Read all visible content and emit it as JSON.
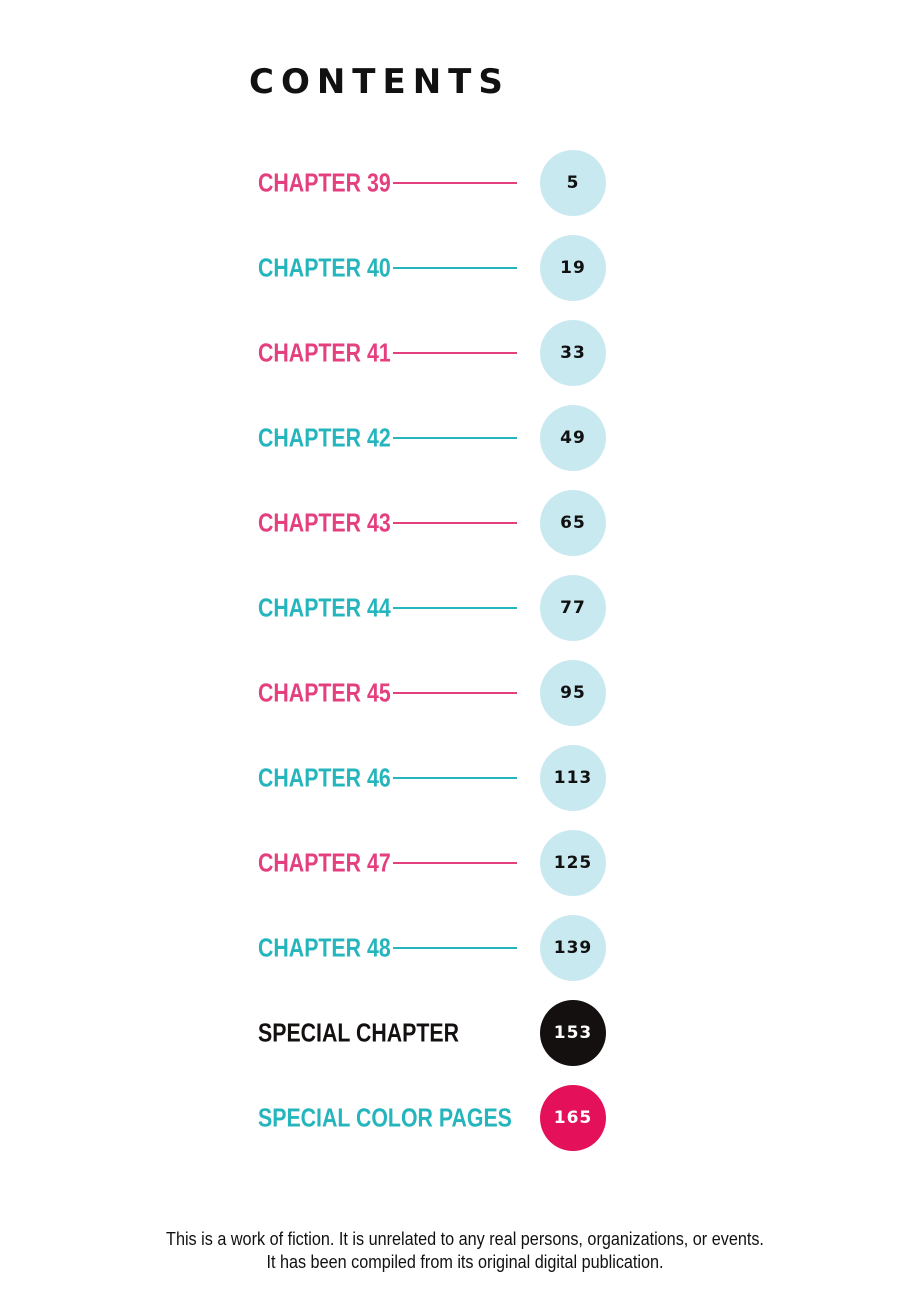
{
  "title": "CONTENTS",
  "colors": {
    "pink": "#e43f7e",
    "teal": "#25b5bd",
    "circle": "#c9e9f0",
    "black": "#141010",
    "red": "#e4105a"
  },
  "entries": [
    {
      "label": "CHAPTER 39",
      "page": "5",
      "style": "pink"
    },
    {
      "label": "CHAPTER 40",
      "page": "19",
      "style": "teal"
    },
    {
      "label": "CHAPTER 41",
      "page": "33",
      "style": "pink"
    },
    {
      "label": "CHAPTER 42",
      "page": "49",
      "style": "teal"
    },
    {
      "label": "CHAPTER 43",
      "page": "65",
      "style": "pink"
    },
    {
      "label": "CHAPTER 44",
      "page": "77",
      "style": "teal"
    },
    {
      "label": "CHAPTER 45",
      "page": "95",
      "style": "pink"
    },
    {
      "label": "CHAPTER 46",
      "page": "113",
      "style": "teal"
    },
    {
      "label": "CHAPTER 47",
      "page": "125",
      "style": "pink"
    },
    {
      "label": "CHAPTER 48",
      "page": "139",
      "style": "teal"
    },
    {
      "label": "SPECIAL CHAPTER",
      "page": "153",
      "style": "special-black"
    },
    {
      "label": "SPECIAL COLOR PAGES",
      "page": "165",
      "style": "special-red"
    }
  ],
  "footer": {
    "line1": "This is a work of fiction. It is unrelated to any real persons, organizations, or events.",
    "line2": "It has been compiled from its original digital publication."
  }
}
